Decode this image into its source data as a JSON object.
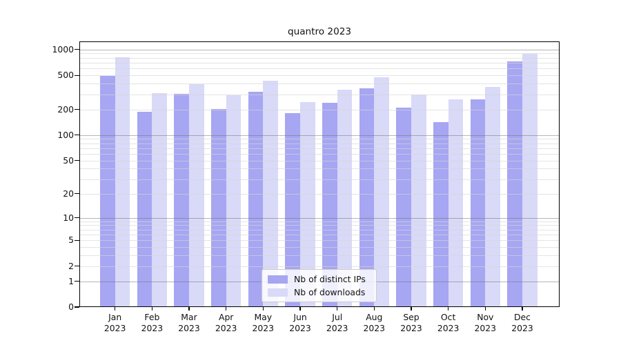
{
  "chart_data": {
    "type": "bar",
    "title": "quantro 2023",
    "categories": [
      {
        "month": "Jan",
        "year": "2023"
      },
      {
        "month": "Feb",
        "year": "2023"
      },
      {
        "month": "Mar",
        "year": "2023"
      },
      {
        "month": "Apr",
        "year": "2023"
      },
      {
        "month": "May",
        "year": "2023"
      },
      {
        "month": "Jun",
        "year": "2023"
      },
      {
        "month": "Jul",
        "year": "2023"
      },
      {
        "month": "Aug",
        "year": "2023"
      },
      {
        "month": "Sep",
        "year": "2023"
      },
      {
        "month": "Oct",
        "year": "2023"
      },
      {
        "month": "Nov",
        "year": "2023"
      },
      {
        "month": "Dec",
        "year": "2023"
      }
    ],
    "series": [
      {
        "name": "Nb of distinct IPs",
        "color": "#a6a6f2",
        "values": [
          490,
          187,
          304,
          203,
          322,
          180,
          237,
          351,
          208,
          143,
          261,
          722
        ]
      },
      {
        "name": "Nb of downloads",
        "color": "#d9d9f8",
        "values": [
          808,
          312,
          392,
          291,
          430,
          242,
          340,
          471,
          296,
          262,
          367,
          893
        ]
      }
    ],
    "y_axis": {
      "scale": "log10(1+y)",
      "tick_values": [
        0,
        1,
        2,
        5,
        10,
        20,
        50,
        100,
        200,
        500,
        1000
      ],
      "tick_labels": [
        "0",
        "1",
        "2",
        "5",
        "10",
        "20",
        "50",
        "100",
        "200",
        "500",
        "1000"
      ],
      "range": [
        0,
        1244
      ],
      "major_grid_values": [
        1,
        10,
        100,
        1000
      ],
      "minor_grid_values": [
        2,
        3,
        4,
        5,
        6,
        7,
        8,
        9,
        20,
        30,
        40,
        50,
        60,
        70,
        80,
        90,
        200,
        300,
        400,
        500,
        600,
        700,
        800,
        900
      ]
    },
    "xlabel": "",
    "ylabel": "",
    "grid": true,
    "legend": {
      "position": "lower center",
      "labels": [
        "Nb of distinct IPs",
        "Nb of downloads"
      ]
    }
  },
  "colors": {
    "bar_distinct_ips": "#a6a6f2",
    "bar_downloads": "#d9d9f8",
    "major_grid": "#6e6e6e",
    "minor_grid": "#d5d5d5",
    "axis": "#000000",
    "legend_border": "#cccccc",
    "background": "#ffffff"
  }
}
